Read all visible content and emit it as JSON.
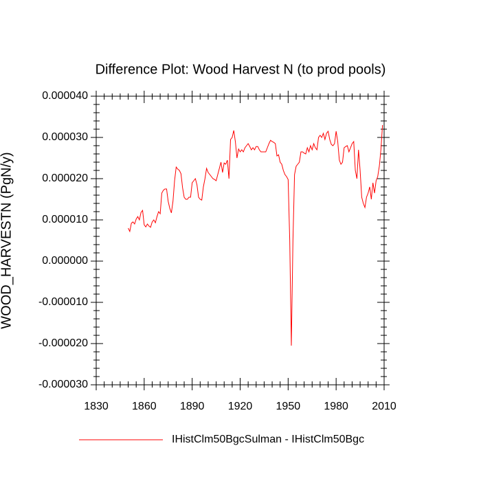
{
  "chart_data": {
    "type": "line",
    "title": "Difference Plot: Wood Harvest N (to prod pools)",
    "y_label": "WOOD_HARVESTN  (PgN/y)",
    "x": [
      1850,
      1851,
      1852,
      1853,
      1854,
      1855,
      1856,
      1857,
      1858,
      1859,
      1860,
      1861,
      1862,
      1863,
      1864,
      1865,
      1866,
      1867,
      1868,
      1869,
      1870,
      1871,
      1872,
      1873,
      1874,
      1875,
      1876,
      1877,
      1878,
      1879,
      1880,
      1881,
      1882,
      1883,
      1884,
      1885,
      1886,
      1887,
      1888,
      1889,
      1890,
      1891,
      1892,
      1893,
      1894,
      1895,
      1896,
      1897,
      1898,
      1899,
      1900,
      1901,
      1902,
      1903,
      1904,
      1905,
      1906,
      1907,
      1908,
      1909,
      1910,
      1911,
      1912,
      1913,
      1914,
      1915,
      1916,
      1917,
      1918,
      1919,
      1920,
      1921,
      1922,
      1923,
      1924,
      1925,
      1926,
      1927,
      1928,
      1929,
      1930,
      1931,
      1932,
      1933,
      1934,
      1935,
      1936,
      1937,
      1938,
      1939,
      1940,
      1941,
      1942,
      1943,
      1944,
      1945,
      1946,
      1947,
      1948,
      1949,
      1950,
      1951,
      1952,
      1953,
      1954,
      1955,
      1956,
      1957,
      1958,
      1959,
      1960,
      1961,
      1962,
      1963,
      1964,
      1965,
      1966,
      1967,
      1968,
      1969,
      1970,
      1971,
      1972,
      1973,
      1974,
      1975,
      1976,
      1977,
      1978,
      1979,
      1980,
      1981,
      1982,
      1983,
      1984,
      1985,
      1986,
      1987,
      1988,
      1989,
      1990,
      1991,
      1992,
      1993,
      1994,
      1995,
      1996,
      1997,
      1998,
      1999,
      2000,
      2001,
      2002,
      2003,
      2004,
      2005,
      2006,
      2007,
      2008,
      2009
    ],
    "series": [
      {
        "name": "IHistClm50BgcSulman - IHistClm50Bgc",
        "color": "#ff0000",
        "values": [
          8e-06,
          7.2e-06,
          9.2e-06,
          9.5e-06,
          9e-06,
          1.02e-05,
          1.08e-05,
          1e-05,
          1.18e-05,
          1.23e-05,
          8.8e-06,
          8.3e-06,
          9e-06,
          8.5e-06,
          8.2e-06,
          9.5e-06,
          1e-05,
          9.3e-06,
          1.08e-05,
          1.2e-05,
          1.15e-05,
          1.65e-05,
          1.72e-05,
          1.75e-05,
          1.75e-05,
          1.45e-05,
          1.28e-05,
          1.17e-05,
          1.45e-05,
          1.95e-05,
          2.28e-05,
          2.23e-05,
          2.2e-05,
          2.12e-05,
          1.78e-05,
          1.55e-05,
          1.5e-05,
          1.5e-05,
          1.55e-05,
          1.55e-05,
          1.9e-05,
          1.95e-05,
          2e-05,
          1.85e-05,
          1.55e-05,
          1.5e-05,
          1.48e-05,
          1.8e-05,
          2e-05,
          2.25e-05,
          2.15e-05,
          2.1e-05,
          2.05e-05,
          2e-05,
          1.98e-05,
          1.95e-05,
          2.1e-05,
          2.25e-05,
          2.4e-05,
          2.15e-05,
          2.38e-05,
          2.35e-05,
          2.45e-05,
          2e-05,
          2.95e-05,
          3e-05,
          3.17e-05,
          2.9e-05,
          2.5e-05,
          2.72e-05,
          2.65e-05,
          2.7e-05,
          2.65e-05,
          2.75e-05,
          2.8e-05,
          2.85e-05,
          2.78e-05,
          2.7e-05,
          2.75e-05,
          2.7e-05,
          2.78e-05,
          2.78e-05,
          2.7e-05,
          2.65e-05,
          2.65e-05,
          2.65e-05,
          2.65e-05,
          2.75e-05,
          2.85e-05,
          2.93e-05,
          2.9e-05,
          2.88e-05,
          2.85e-05,
          2.55e-05,
          2.58e-05,
          2.4e-05,
          2.35e-05,
          2.2e-05,
          2.1e-05,
          2.05e-05,
          1.98e-05,
          5e-06,
          -2.05e-05,
          5e-06,
          2.1e-05,
          2.3e-05,
          2.35e-05,
          2.4e-05,
          2.65e-05,
          2.65e-05,
          2.62e-05,
          2.6e-05,
          2.75e-05,
          2.65e-05,
          2.8e-05,
          2.7e-05,
          2.85e-05,
          2.75e-05,
          2.7e-05,
          3e-05,
          3.05e-05,
          3e-05,
          3.1e-05,
          2.95e-05,
          3.1e-05,
          3.15e-05,
          2.95e-05,
          2.83e-05,
          2.8e-05,
          2.85e-05,
          3.15e-05,
          2.9e-05,
          2.45e-05,
          2.35e-05,
          2.4e-05,
          2.75e-05,
          2.78e-05,
          2.8e-05,
          2.65e-05,
          2.75e-05,
          2.85e-05,
          2.9e-05,
          2.2e-05,
          2e-05,
          2.7e-05,
          2.2e-05,
          1.55e-05,
          1.4e-05,
          1.3e-05,
          1.55e-05,
          1.65e-05,
          1.8e-05,
          1.5e-05,
          1.9e-05,
          1.65e-05,
          1.95e-05,
          2.05e-05,
          2.3e-05,
          2.7e-05,
          3.3e-05
        ]
      }
    ],
    "xlim": [
      1830,
      2010
    ],
    "xticks": [
      1830,
      1860,
      1890,
      1920,
      1950,
      1980,
      2010
    ],
    "ylim": [
      -3e-05,
      4e-05
    ],
    "yticks": [
      {
        "value": -3e-05,
        "label": "-0.000030"
      },
      {
        "value": -2e-05,
        "label": "-0.000020"
      },
      {
        "value": -1e-05,
        "label": "-0.000010"
      },
      {
        "value": 0,
        "label": "0.000000"
      },
      {
        "value": 1e-05,
        "label": "0.000010"
      },
      {
        "value": 2e-05,
        "label": "0.000020"
      },
      {
        "value": 3e-05,
        "label": "0.000030"
      },
      {
        "value": 4e-05,
        "label": "0.000040"
      }
    ],
    "grid": false
  }
}
